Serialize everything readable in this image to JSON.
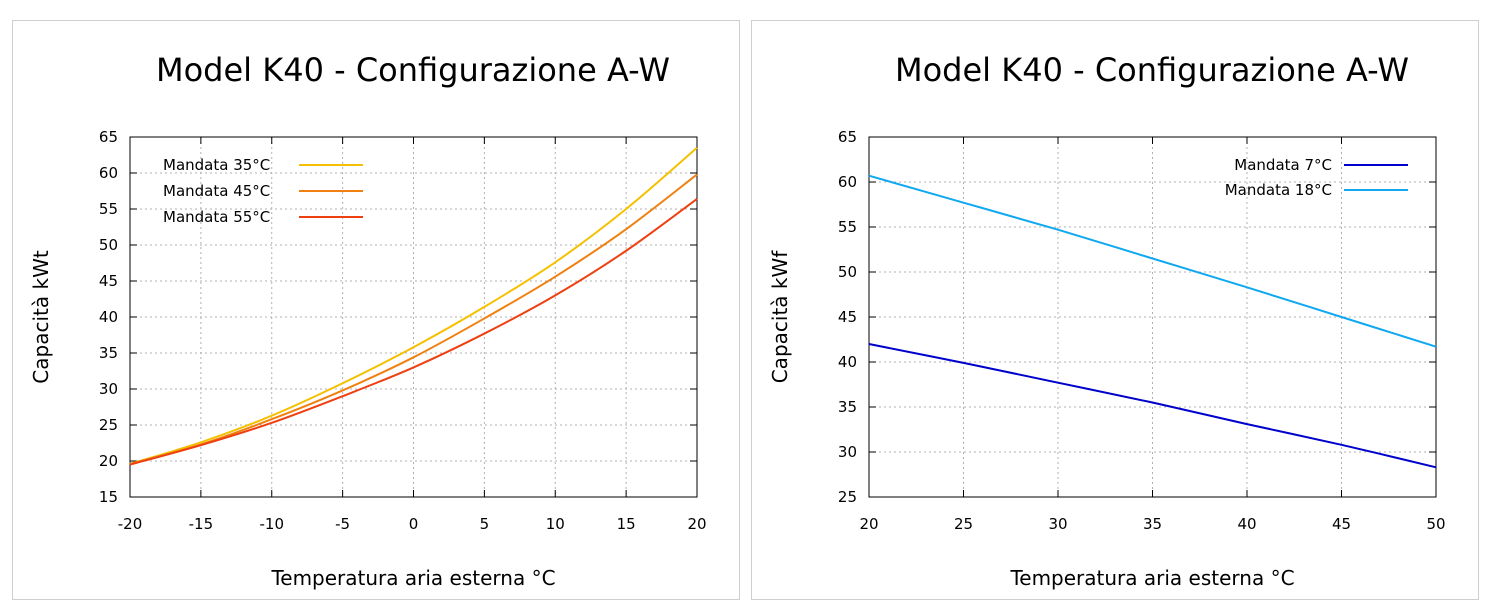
{
  "chart_data": [
    {
      "type": "line",
      "title": "Model K40 - Configurazione A-W",
      "xlabel": "Temperatura aria esterna °C",
      "ylabel": "Capacità kWt",
      "xlim": [
        -20,
        20
      ],
      "ylim": [
        15,
        65
      ],
      "xticks": [
        -20,
        -15,
        -10,
        -5,
        0,
        5,
        10,
        15,
        20
      ],
      "yticks": [
        15,
        20,
        25,
        30,
        35,
        40,
        45,
        50,
        55,
        60,
        65
      ],
      "grid": true,
      "legend_position": "top-left",
      "x": [
        -20,
        -15,
        -10,
        -5,
        0,
        5,
        10,
        15,
        20
      ],
      "series": [
        {
          "name": "Mandata 35°C",
          "color": "#f5c000",
          "values": [
            19.6,
            22.6,
            26.3,
            30.8,
            35.8,
            41.4,
            47.6,
            55.0,
            63.5
          ]
        },
        {
          "name": "Mandata 45°C",
          "color": "#f08010",
          "values": [
            19.6,
            22.3,
            25.8,
            29.8,
            34.4,
            39.8,
            45.6,
            52.2,
            59.8
          ]
        },
        {
          "name": "Mandata 55°C",
          "color": "#ee4010",
          "values": [
            19.5,
            22.2,
            25.3,
            29.0,
            33.0,
            37.7,
            43.0,
            49.2,
            56.4
          ]
        }
      ]
    },
    {
      "type": "line",
      "title": "Model K40 - Configurazione A-W",
      "xlabel": "Temperatura aria esterna °C",
      "ylabel": "Capacità kWf",
      "xlim": [
        20,
        50
      ],
      "ylim": [
        25,
        65
      ],
      "xticks": [
        20,
        25,
        30,
        35,
        40,
        45,
        50
      ],
      "yticks": [
        25,
        30,
        35,
        40,
        45,
        50,
        55,
        60,
        65
      ],
      "grid": true,
      "legend_position": "top-right",
      "x": [
        20,
        25,
        30,
        35,
        40,
        45,
        50
      ],
      "series": [
        {
          "name": "Mandata 7°C",
          "color": "#0000cc",
          "values": [
            42.0,
            39.9,
            37.7,
            35.5,
            33.1,
            30.8,
            28.3
          ]
        },
        {
          "name": "Mandata 18°C",
          "color": "#10a8f0",
          "values": [
            60.7,
            57.7,
            54.7,
            51.5,
            48.3,
            45.0,
            41.7
          ]
        }
      ]
    }
  ]
}
